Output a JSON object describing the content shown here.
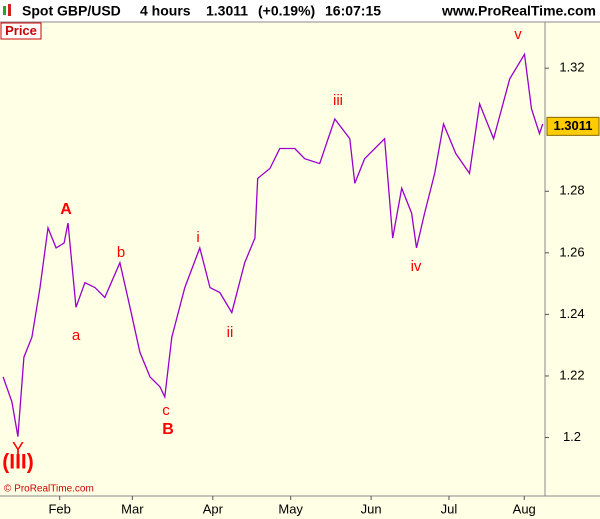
{
  "header": {
    "title": "Spot GBP/USD",
    "timeframe": "4 hours",
    "change": "(+0.19%)",
    "time": "16:07:15",
    "site": "www.ProRealTime.com"
  },
  "panel_label": "Price",
  "footer": "© ProRealTime.com",
  "chart_data": {
    "type": "line",
    "last_price": 1.3011,
    "series": [
      {
        "name": "Price",
        "color": "#9900cc",
        "x": [
          10.2,
          13.6,
          15.9,
          18.2,
          21.3,
          24.4,
          27.5,
          30.6,
          33.7,
          35.2,
          38.3,
          41.7,
          45.6,
          49.4,
          55.2,
          59.1,
          62.9,
          66.8,
          70.6,
          72.5,
          75.2,
          80.2,
          86.0,
          89.9,
          93.7,
          98.3,
          103.3,
          107.2,
          108.3,
          113.0,
          116.8,
          122.6,
          126.4,
          132.2,
          138.0,
          143.8,
          145.7,
          149.5,
          157.2,
          160.3,
          163.8,
          167.6,
          169.5,
          172.6,
          176.5,
          179.9,
          184.6,
          189.9,
          193.8,
          199.2,
          205.4,
          211.1,
          213.8,
          216.9,
          218.1
        ],
        "values": [
          1.2197,
          1.2116,
          1.2003,
          1.2261,
          1.2326,
          1.2487,
          1.2681,
          1.2616,
          1.2632,
          1.2697,
          1.2423,
          1.2503,
          1.2487,
          1.2455,
          1.2568,
          1.2423,
          1.2277,
          1.2197,
          1.2165,
          1.2132,
          1.2326,
          1.2487,
          1.2616,
          1.2487,
          1.2471,
          1.2406,
          1.2568,
          1.2648,
          1.2842,
          1.2874,
          1.2939,
          1.2939,
          1.2906,
          1.289,
          1.3035,
          1.2971,
          1.2826,
          1.2906,
          1.2971,
          1.2648,
          1.281,
          1.2729,
          1.2616,
          1.2729,
          1.2858,
          1.3019,
          1.2923,
          1.2858,
          1.3084,
          1.2971,
          1.3165,
          1.3245,
          1.3068,
          1.2987,
          1.3019
        ]
      }
    ],
    "xlim": [
      9,
      219
    ],
    "xticks": [
      {
        "value": 32,
        "label": "Feb"
      },
      {
        "value": 60,
        "label": "Mar"
      },
      {
        "value": 91,
        "label": "Apr"
      },
      {
        "value": 121,
        "label": "May"
      },
      {
        "value": 152,
        "label": "Jun"
      },
      {
        "value": 182,
        "label": "Jul"
      },
      {
        "value": 211,
        "label": "Aug"
      }
    ],
    "ylim": [
      1.181,
      1.335
    ],
    "yticks": [
      {
        "value": 1.2,
        "label": "1.2"
      },
      1.22,
      1.24,
      1.26,
      1.28,
      1.32
    ],
    "annotations": [
      {
        "text": "A",
        "color": "#ff0000"
      },
      {
        "text": "a",
        "color": "#ff0000"
      },
      {
        "text": "b",
        "color": "#ff0000"
      },
      {
        "text": "c",
        "color": "#ff0000"
      },
      {
        "text": "B",
        "color": "#ff0000"
      },
      {
        "text": "i",
        "color": "#ff0000"
      },
      {
        "text": "ii",
        "color": "#ff0000"
      },
      {
        "text": "iii",
        "color": "#ff0000"
      },
      {
        "text": "iv",
        "color": "#ff0000"
      },
      {
        "text": "v",
        "color": "#ff0000"
      },
      {
        "text": "Y",
        "color": "#ff0000"
      },
      {
        "text": "(III)",
        "color": "#ff0000"
      }
    ]
  }
}
